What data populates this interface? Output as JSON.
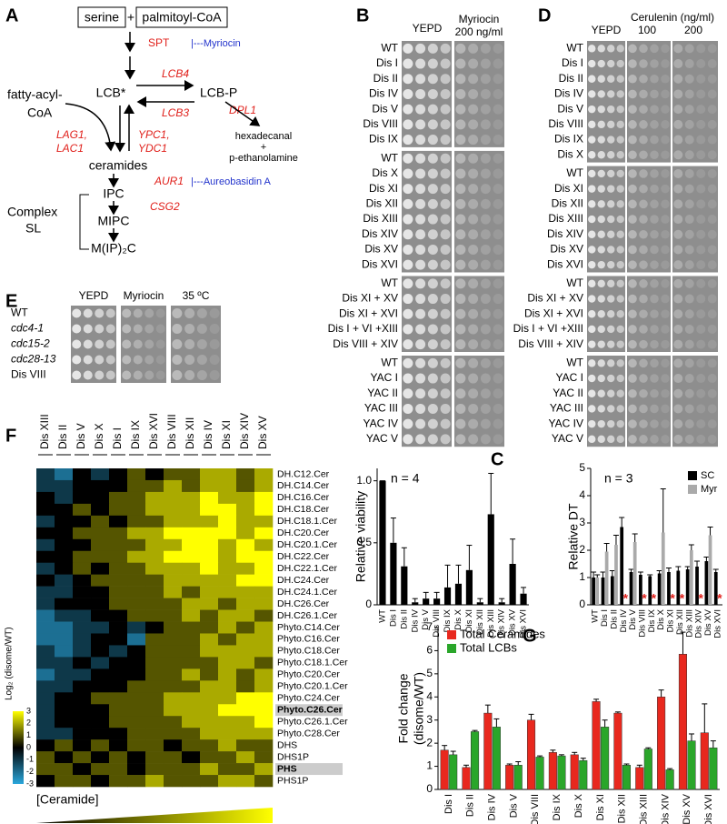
{
  "panel_a": {
    "letter": "A",
    "serine": "serine",
    "plus": "+",
    "palmitoyl": "palmitoyl-CoA",
    "spt": "SPT",
    "myriocin": "|---Myriocin",
    "lcb": "LCB*",
    "lcb4": "LCB4",
    "lcbp": "LCB-P",
    "lcb3": "LCB3",
    "dpl1": "DPL1",
    "products": [
      "hexadecanal",
      "+",
      "p-ethanolamine"
    ],
    "fatty": [
      "fatty-acyl-",
      "CoA"
    ],
    "lag": [
      "LAG1,",
      "LAC1"
    ],
    "ypc": [
      "YPC1,",
      "YDC1"
    ],
    "ceramides": "ceramides",
    "aur1": "AUR1",
    "aureo": "|---Aureobasidin A",
    "ipc": "IPC",
    "csg2": "CSG2",
    "mipc": "MIPC",
    "complex": [
      "Complex",
      "SL"
    ],
    "mip2c": "M(IP)₂C"
  },
  "panel_b": {
    "letter": "B",
    "headers": [
      "YEPD",
      "Myriocin",
      "200 ng/ml"
    ],
    "groups": [
      [
        "WT",
        "Dis I",
        "Dis II",
        "Dis IV",
        "Dis V",
        "Dis VIII",
        "Dis IX"
      ],
      [
        "WT",
        "Dis X",
        "Dis XI",
        "Dis XII",
        "Dis XIII",
        "Dis XIV",
        "Dis XV",
        "Dis XVI"
      ],
      [
        "WT",
        "Dis XI + XV",
        "Dis XI + XVI",
        "Dis I + VI +XIII",
        "Dis VIII + XIV"
      ],
      [
        "WT",
        "YAC I",
        "YAC II",
        "YAC III",
        "YAC IV",
        "YAC V"
      ]
    ]
  },
  "panel_d": {
    "letter": "D",
    "headers": [
      "YEPD",
      "Cerulenin (ng/ml)",
      "100",
      "200"
    ],
    "groups": [
      [
        "WT",
        "Dis I",
        "Dis II",
        "Dis IV",
        "Dis V",
        "Dis VIII",
        "Dis IX",
        "Dis X"
      ],
      [
        "WT",
        "Dis XI",
        "Dis XII",
        "Dis XIII",
        "Dis XIV",
        "Dis XV",
        "Dis XVI"
      ],
      [
        "WT",
        "Dis XI + XV",
        "Dis XI + XVI",
        "Dis I + VI +XIII",
        "Dis VIII + XIV"
      ],
      [
        "WT",
        "YAC I",
        "YAC II",
        "YAC III",
        "YAC IV",
        "YAC V"
      ]
    ]
  },
  "panel_e": {
    "letter": "E",
    "headers": [
      "YEPD",
      "Myriocin",
      "35 ºC"
    ],
    "rows": [
      "WT",
      "cdc4-1",
      "cdc15-2",
      "cdc28-13",
      "Dis VIII"
    ]
  },
  "panel_f": {
    "letter": "F",
    "columns": [
      "Dis XIII",
      "Dis II",
      "Dis V",
      "Dis X",
      "Dis I",
      "Dis IX",
      "Dis XVI",
      "Dis VIII",
      "Dis XII",
      "Dis IV",
      "Dis XI",
      "Dis XIV",
      "Dis XV"
    ],
    "rows": [
      "DH.C12.Cer",
      "DH.C14.Cer",
      "DH.C16.Cer",
      "DH.C18.Cer",
      "DH.C18.1.Cer",
      "DH.C20.Cer",
      "DH.C20.1.Cer",
      "DH.C22.Cer",
      "DH.C22.1.Cer",
      "DH.C24.Cer",
      "DH.C24.1.Cer",
      "DH.C26.Cer",
      "DH.C26.1.Cer",
      "Phyto.C14.Cer",
      "Phyto.C16.Cer",
      "Phyto.C18.Cer",
      "Phyto.C18.1.Cer",
      "Phyto.C20.Cer",
      "Phyto.C20.1.Cer",
      "Phyto.C24.Cer",
      "Phyto.C26.Cer",
      "Phyto.C26.1.Cer",
      "Phyto.C28.Cer",
      "DHS",
      "DHS1P",
      "PHS",
      "PHS1P"
    ],
    "highlighted_rows": [
      20,
      25
    ],
    "values": [
      [
        -1,
        -2,
        0,
        -1,
        0,
        1,
        0,
        1,
        1,
        2,
        2,
        1,
        2
      ],
      [
        -1,
        -1,
        0,
        0,
        0,
        1,
        1,
        2,
        1,
        2,
        2,
        1,
        2
      ],
      [
        0,
        -1,
        0,
        0,
        1,
        1,
        2,
        2,
        2,
        3,
        2,
        2,
        3
      ],
      [
        0,
        0,
        1,
        0,
        1,
        1,
        2,
        2,
        2,
        3,
        3,
        2,
        3
      ],
      [
        -1,
        0,
        0,
        1,
        0,
        1,
        1,
        2,
        2,
        2,
        3,
        2,
        2
      ],
      [
        0,
        0,
        1,
        1,
        1,
        2,
        2,
        3,
        3,
        3,
        3,
        2,
        3
      ],
      [
        -1,
        0,
        0,
        1,
        1,
        1,
        2,
        2,
        3,
        3,
        2,
        3,
        2
      ],
      [
        0,
        0,
        1,
        1,
        1,
        2,
        2,
        3,
        3,
        3,
        2,
        3,
        3
      ],
      [
        -1,
        0,
        1,
        0,
        1,
        1,
        2,
        2,
        2,
        3,
        2,
        2,
        3
      ],
      [
        0,
        -1,
        0,
        1,
        1,
        1,
        1,
        2,
        2,
        2,
        2,
        3,
        3
      ],
      [
        -1,
        -1,
        0,
        0,
        1,
        1,
        1,
        2,
        1,
        2,
        2,
        2,
        2
      ],
      [
        -1,
        0,
        0,
        0,
        1,
        1,
        1,
        1,
        2,
        2,
        1,
        2,
        2
      ],
      [
        -2,
        -1,
        -1,
        0,
        0,
        1,
        1,
        1,
        2,
        1,
        2,
        2,
        1
      ],
      [
        -2,
        -2,
        -1,
        -1,
        0,
        -1,
        0,
        1,
        1,
        1,
        2,
        1,
        2
      ],
      [
        -2,
        -2,
        -1,
        0,
        0,
        -2,
        1,
        1,
        1,
        2,
        1,
        2,
        2
      ],
      [
        -1,
        -2,
        -1,
        0,
        -1,
        0,
        1,
        1,
        1,
        2,
        2,
        2,
        2
      ],
      [
        -1,
        -1,
        0,
        -1,
        0,
        0,
        1,
        1,
        1,
        1,
        2,
        2,
        1
      ],
      [
        -2,
        -1,
        -1,
        0,
        0,
        0,
        1,
        1,
        2,
        1,
        2,
        1,
        2
      ],
      [
        -1,
        -1,
        0,
        0,
        0,
        1,
        1,
        1,
        1,
        2,
        2,
        1,
        2
      ],
      [
        -1,
        0,
        0,
        1,
        1,
        1,
        1,
        2,
        2,
        2,
        2,
        3,
        3
      ],
      [
        -1,
        0,
        0,
        0,
        1,
        1,
        1,
        2,
        2,
        2,
        3,
        3,
        3
      ],
      [
        -1,
        0,
        0,
        0,
        1,
        1,
        1,
        1,
        2,
        2,
        2,
        2,
        3
      ],
      [
        -1,
        -1,
        0,
        0,
        0,
        1,
        1,
        1,
        1,
        2,
        2,
        2,
        2
      ],
      [
        0,
        1,
        0,
        1,
        0,
        1,
        1,
        0,
        1,
        1,
        2,
        1,
        1
      ],
      [
        1,
        0,
        1,
        0,
        1,
        0,
        1,
        1,
        0,
        1,
        1,
        2,
        1
      ],
      [
        1,
        1,
        0,
        1,
        1,
        0,
        1,
        1,
        1,
        2,
        1,
        1,
        2
      ],
      [
        0,
        1,
        1,
        0,
        1,
        1,
        2,
        1,
        1,
        1,
        2,
        2,
        1
      ]
    ],
    "clim": [
      -3,
      3
    ],
    "colors": [
      "#2aa7dc",
      "#000000",
      "#ffff00"
    ],
    "colorbar_title": "Log₂ (disome/WT)",
    "colorbar_ticks": [
      3,
      2,
      1,
      0,
      -1,
      -2,
      -3
    ],
    "x_label": "[Ceramide]"
  },
  "chart_data": [
    {
      "type": "bar",
      "panel_label": "C",
      "annotation": "n = 4",
      "ylabel": "Relative viability",
      "categories": [
        "WT",
        "Dis I",
        "Dis II",
        "Dis IV",
        "Dis V",
        "Dis VIII",
        "Dis IX",
        "Dis X",
        "Dis XI",
        "Dis XII",
        "Dis XIII",
        "Dis XIV",
        "Dis XV",
        "Dis XVI"
      ],
      "values": [
        1,
        0.5,
        0.31,
        0.02,
        0.05,
        0.05,
        0.14,
        0.17,
        0.28,
        0.02,
        0.73,
        0.02,
        0.33,
        0.09
      ],
      "errors": [
        0,
        0.2,
        0.15,
        0.03,
        0.05,
        0.05,
        0.18,
        0.15,
        0.2,
        0.03,
        0.33,
        0.03,
        0.2,
        0.05
      ],
      "color": "#000000",
      "ylim": [
        0,
        1.1
      ],
      "yticks": [
        0,
        0.5,
        {
          "value": 1,
          "label": "1.0"
        }
      ]
    },
    {
      "type": "grouped_bar",
      "annotation": "n = 3",
      "ylabel": "Relative DT",
      "categories": [
        "WT",
        "Dis I",
        "Dis II",
        "Dis IV",
        "Dis V",
        "Dis VIII",
        "Dis IX",
        "Dis X",
        "Dis XI",
        "Dis XII",
        "Dis XIII",
        "Dis XIV",
        "Dis XV",
        "Dis XVI"
      ],
      "series": [
        {
          "name": "SC",
          "color": "#000000",
          "values": [
            1,
            1,
            1.05,
            2.85,
            1.2,
            1.1,
            1.05,
            1.15,
            1.2,
            1.25,
            1.3,
            1.4,
            1.6,
            1.2
          ],
          "errors": [
            0.2,
            0.2,
            0.2,
            0.35,
            0.1,
            0.1,
            0.05,
            0.1,
            0.15,
            0.15,
            0.1,
            0.2,
            0.15,
            0.1
          ]
        },
        {
          "name": "Myr",
          "color": "#aaaaaa",
          "values": [
            1,
            1.95,
            2.2,
            null,
            2.3,
            null,
            null,
            2.65,
            null,
            null,
            2,
            null,
            2.55,
            null
          ],
          "errors": [
            0.1,
            0.3,
            0.35,
            null,
            0.3,
            null,
            null,
            1.6,
            null,
            null,
            0.2,
            null,
            0.3,
            null
          ]
        }
      ],
      "marker_label": "*",
      "marker_color": "#e0201b",
      "ylim": [
        0,
        5
      ],
      "yticks": [
        0,
        1,
        2,
        3,
        4,
        5
      ],
      "legend": "upper right"
    },
    {
      "type": "grouped_bar",
      "panel_label": "G",
      "ylabel": [
        "Fold change",
        "(disome/WT)"
      ],
      "categories": [
        "Dis I",
        "Dis II",
        "Dis IV",
        "Dis V",
        "Dis VIII",
        "Dis IX",
        "Dis X",
        "Dis XI",
        "Dis XII",
        "Dis XIII",
        "Dis XIV",
        "Dis XV",
        "Dis XVI"
      ],
      "series": [
        {
          "name": "Total Ceramides",
          "color": "#e8281e",
          "values": [
            1.7,
            0.95,
            3.3,
            1.05,
            3,
            1.6,
            1.5,
            3.8,
            3.3,
            0.95,
            4,
            5.85,
            2.45
          ],
          "errors": [
            0.2,
            0.1,
            0.35,
            0.05,
            0.25,
            0.1,
            0.1,
            0.1,
            0.05,
            0.1,
            0.3,
            0.95,
            1.25
          ]
        },
        {
          "name": "Total LCBs",
          "color": "#2aa62a",
          "values": [
            1.5,
            2.5,
            2.7,
            1.05,
            1.4,
            1.45,
            1.25,
            2.7,
            1.05,
            1.75,
            0.85,
            2.1,
            1.8
          ],
          "errors": [
            0.15,
            0.05,
            0.35,
            0.15,
            0.05,
            0.05,
            0.1,
            0.3,
            0.05,
            0.05,
            0.05,
            0.3,
            0.3
          ]
        }
      ],
      "ylim": [
        0,
        7
      ],
      "yticks": [
        0,
        1,
        2,
        3,
        4,
        5,
        6,
        7
      ],
      "legend": "upper left"
    }
  ]
}
